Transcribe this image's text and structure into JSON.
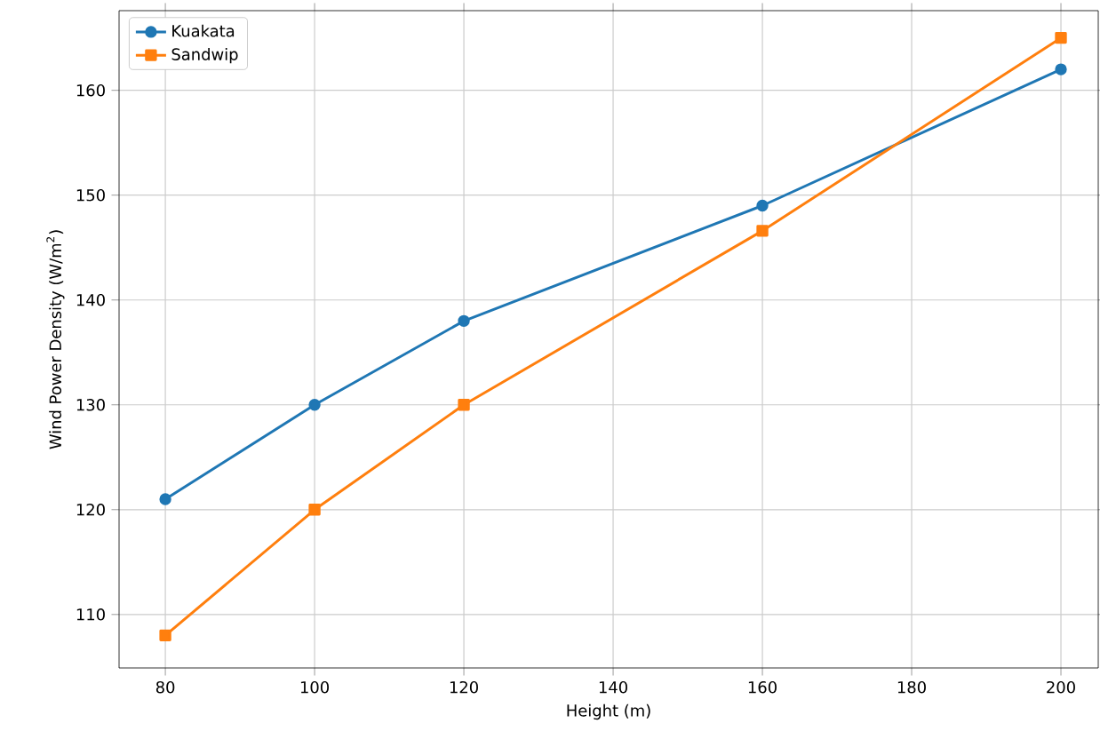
{
  "chart_data": {
    "type": "line",
    "xlabel": "Height (m)",
    "ylabel": "Wind Power Density (W/m$^{2}$)",
    "x": [
      80,
      100,
      120,
      160,
      200
    ],
    "series": [
      {
        "name": "Kuakata",
        "color": "#1f77b4",
        "marker": "circle",
        "values": [
          121,
          130,
          138,
          149,
          162
        ]
      },
      {
        "name": "Sandwip",
        "color": "#ff7f0e",
        "marker": "square",
        "values": [
          108,
          120,
          130,
          146.6,
          165
        ]
      }
    ],
    "xlim": [
      73.8,
      205
    ],
    "ylim": [
      104.9,
      167.6
    ],
    "xticks": [
      80,
      100,
      120,
      140,
      160,
      180,
      200
    ],
    "yticks": [
      110,
      120,
      130,
      140,
      150,
      160
    ],
    "grid": true,
    "legend": "top left",
    "line_style": "solid"
  }
}
